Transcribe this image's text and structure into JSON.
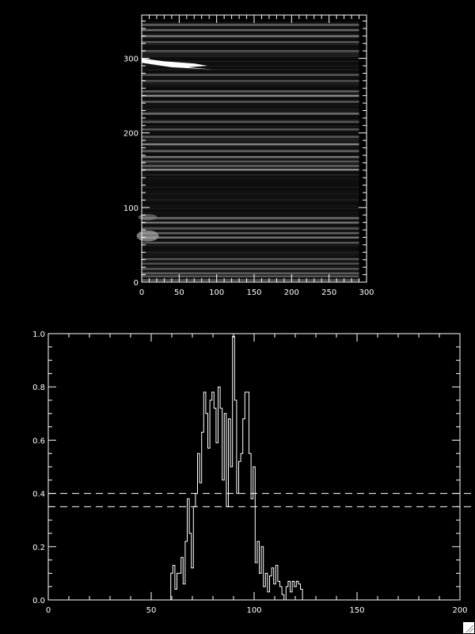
{
  "chart_data": [
    {
      "type": "heatmap",
      "colormap": "grayscale",
      "xlim": [
        0,
        300
      ],
      "ylim": [
        0,
        358
      ],
      "image_extent": {
        "x": [
          0,
          290
        ],
        "y": [
          0,
          350
        ]
      },
      "x_ticks": [
        "0",
        "50",
        "100",
        "150",
        "200",
        "250",
        "300"
      ],
      "y_ticks": [
        "0",
        "100",
        "200",
        "300"
      ],
      "x_minor_step": 10,
      "y_minor_step": 10,
      "bright_bands": [
        {
          "y": 345,
          "level": 0.35
        },
        {
          "y": 338,
          "level": 0.4
        },
        {
          "y": 330,
          "level": 0.45
        },
        {
          "y": 322,
          "level": 0.3
        },
        {
          "y": 310,
          "level": 0.3
        },
        {
          "y": 278,
          "level": 0.3
        },
        {
          "y": 270,
          "level": 0.25
        },
        {
          "y": 256,
          "level": 0.35
        },
        {
          "y": 250,
          "level": 0.6
        },
        {
          "y": 242,
          "level": 0.3
        },
        {
          "y": 226,
          "level": 0.45
        },
        {
          "y": 215,
          "level": 0.3
        },
        {
          "y": 205,
          "level": 0.3
        },
        {
          "y": 195,
          "level": 0.3
        },
        {
          "y": 185,
          "level": 0.55
        },
        {
          "y": 176,
          "level": 0.35
        },
        {
          "y": 168,
          "level": 0.5
        },
        {
          "y": 162,
          "level": 0.3
        },
        {
          "y": 156,
          "level": 0.35
        },
        {
          "y": 151,
          "level": 0.6
        },
        {
          "y": 86,
          "level": 0.4
        },
        {
          "y": 80,
          "level": 0.45
        },
        {
          "y": 72,
          "level": 0.3
        },
        {
          "y": 66,
          "level": 0.35
        },
        {
          "y": 60,
          "level": 0.45
        },
        {
          "y": 53,
          "level": 0.3
        },
        {
          "y": 31,
          "level": 0.3
        },
        {
          "y": 25,
          "level": 0.25
        },
        {
          "y": 18,
          "level": 0.3
        },
        {
          "y": 12,
          "level": 0.35
        },
        {
          "y": 8,
          "level": 0.3
        },
        {
          "y": 3,
          "level": 0.3
        }
      ],
      "saturated_region": {
        "x": [
          0,
          95
        ],
        "y": [
          285,
          300
        ]
      }
    },
    {
      "type": "line",
      "xlim": [
        0,
        200
      ],
      "ylim": [
        0,
        1.0
      ],
      "x_ticks": [
        "0",
        "50",
        "100",
        "150",
        "200"
      ],
      "y_ticks": [
        "0.0",
        "0.2",
        "0.4",
        "0.6",
        "0.8",
        "1.0"
      ],
      "x_minor_step": 10,
      "y_minor_step": 0.05,
      "step_style": "histogram",
      "color": "#ffffff",
      "x": [
        59,
        60,
        61,
        62,
        63,
        64,
        65,
        66,
        67,
        68,
        69,
        70,
        71,
        72,
        73,
        74,
        75,
        76,
        77,
        78,
        79,
        80,
        81,
        82,
        83,
        84,
        85,
        86,
        87,
        88,
        89,
        90,
        91,
        92,
        93,
        94,
        95,
        96,
        97,
        98,
        99,
        100,
        101,
        102,
        103,
        104,
        105,
        106,
        107,
        108,
        109,
        110,
        111,
        112,
        113,
        114,
        115,
        116,
        117,
        118,
        119,
        120,
        121,
        122,
        123,
        124
      ],
      "y": [
        0,
        0.1,
        0.13,
        0.04,
        0.1,
        0.1,
        0.16,
        0.06,
        0.22,
        0.38,
        0.25,
        0.12,
        0.35,
        0.4,
        0.55,
        0.44,
        0.63,
        0.78,
        0.7,
        0.57,
        0.75,
        0.78,
        0.72,
        0.59,
        0.8,
        0.72,
        0.45,
        0.7,
        0.35,
        0.68,
        0.5,
        0.99,
        0.75,
        0.4,
        0.52,
        0.55,
        0.68,
        0.78,
        0.78,
        0.55,
        0.38,
        0.5,
        0.14,
        0.22,
        0.1,
        0.2,
        0.05,
        0.1,
        0.03,
        0.09,
        0.12,
        0.06,
        0.13,
        0.07,
        0.05,
        0.02,
        0,
        0.05,
        0.07,
        0.03,
        0.07,
        0.05,
        0.07,
        0.06,
        0.04,
        0
      ],
      "threshold_lines": [
        {
          "y": 0.4,
          "style": "dashed"
        },
        {
          "y": 0.35,
          "style": "dashed"
        }
      ]
    }
  ]
}
